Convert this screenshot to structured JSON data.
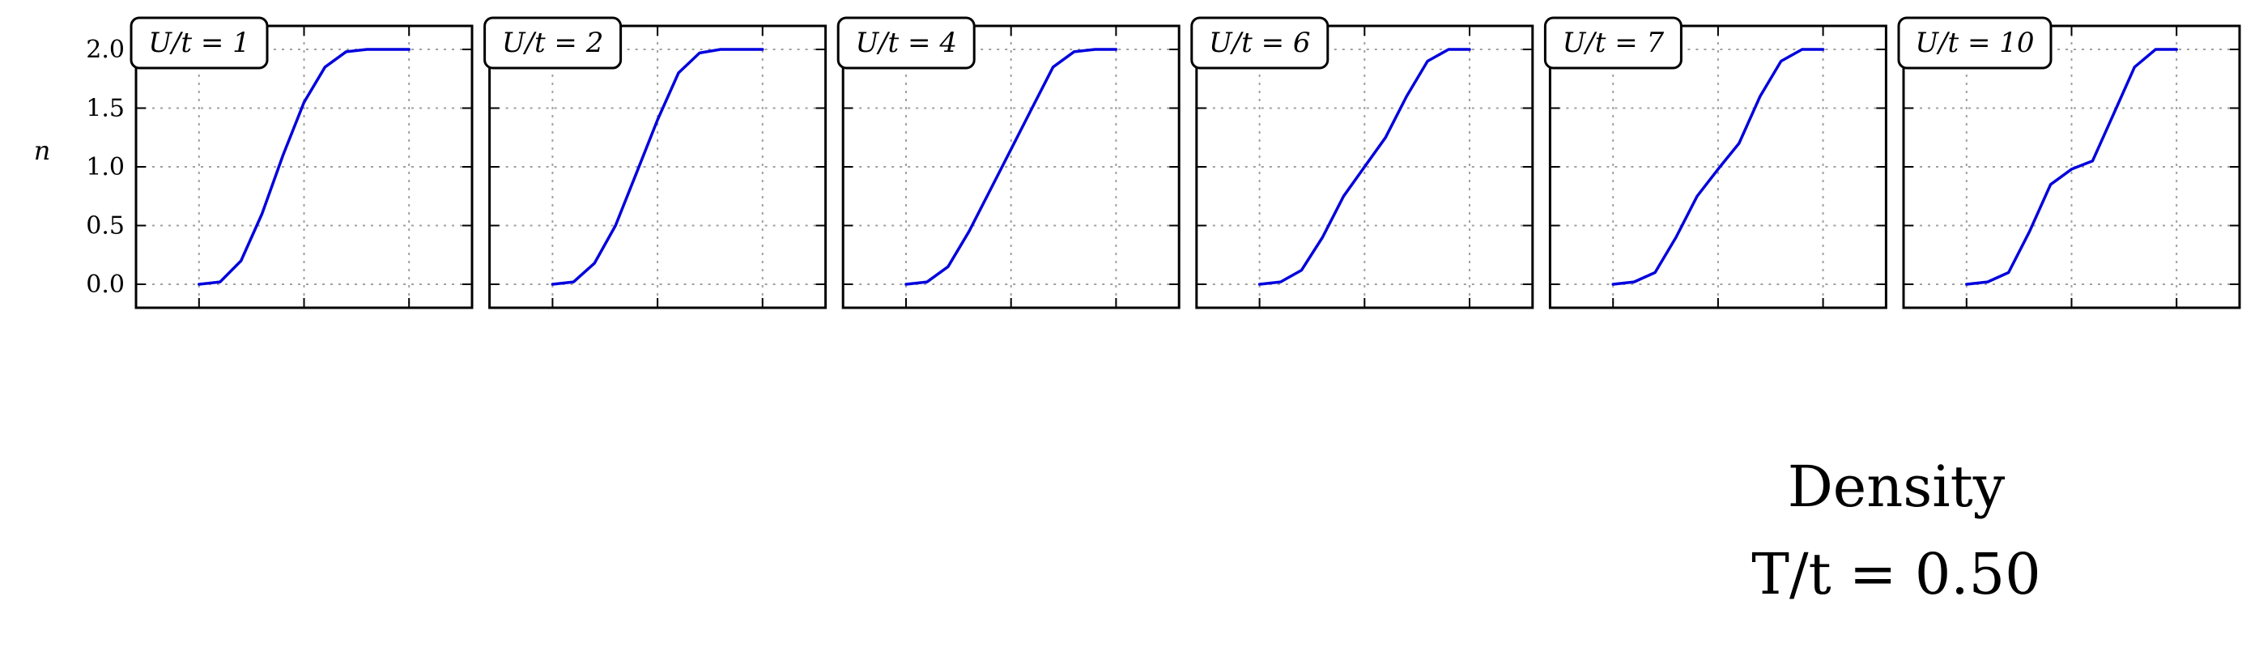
{
  "figure": {
    "title": "Density",
    "subtitle": "T/t = 0.50",
    "ylabel": "n",
    "yticks": [
      "0.0",
      "0.5",
      "1.0",
      "1.5",
      "2.0"
    ],
    "line_color": "#0000dd",
    "grid_color": "#a0a0a0"
  },
  "chart_data": [
    {
      "type": "line",
      "title": "U/t = 1",
      "ylabel": "n",
      "ylim": [
        -0.15,
        2.2
      ],
      "grid": true,
      "series": [
        {
          "x": [
            -1.0,
            -0.8,
            -0.6,
            -0.4,
            -0.2,
            0.0,
            0.2,
            0.4,
            0.6,
            0.8,
            1.0
          ],
          "values": [
            0.0,
            0.02,
            0.2,
            0.6,
            1.1,
            1.55,
            1.85,
            1.98,
            2.0,
            2.0,
            2.0
          ]
        }
      ]
    },
    {
      "type": "line",
      "title": "U/t = 2",
      "ylabel": "n",
      "ylim": [
        -0.15,
        2.2
      ],
      "grid": true,
      "series": [
        {
          "x": [
            -1.0,
            -0.8,
            -0.6,
            -0.4,
            -0.2,
            0.0,
            0.2,
            0.4,
            0.6,
            0.8,
            1.0
          ],
          "values": [
            0.0,
            0.02,
            0.18,
            0.5,
            0.95,
            1.4,
            1.8,
            1.97,
            2.0,
            2.0,
            2.0
          ]
        }
      ]
    },
    {
      "type": "line",
      "title": "U/t = 4",
      "ylabel": "n",
      "ylim": [
        -0.15,
        2.2
      ],
      "grid": true,
      "series": [
        {
          "x": [
            -1.0,
            -0.8,
            -0.6,
            -0.4,
            -0.2,
            0.0,
            0.2,
            0.4,
            0.6,
            0.8,
            1.0
          ],
          "values": [
            0.0,
            0.02,
            0.15,
            0.45,
            0.8,
            1.15,
            1.5,
            1.85,
            1.98,
            2.0,
            2.0
          ]
        }
      ]
    },
    {
      "type": "line",
      "title": "U/t = 6",
      "ylabel": "n",
      "ylim": [
        -0.15,
        2.2
      ],
      "grid": true,
      "series": [
        {
          "x": [
            -1.0,
            -0.8,
            -0.6,
            -0.4,
            -0.2,
            0.0,
            0.2,
            0.4,
            0.6,
            0.8,
            1.0
          ],
          "values": [
            0.0,
            0.02,
            0.12,
            0.4,
            0.75,
            1.0,
            1.25,
            1.6,
            1.9,
            2.0,
            2.0
          ]
        }
      ]
    },
    {
      "type": "line",
      "title": "U/t = 7",
      "ylabel": "n",
      "ylim": [
        -0.15,
        2.2
      ],
      "grid": true,
      "series": [
        {
          "x": [
            -1.0,
            -0.8,
            -0.6,
            -0.4,
            -0.2,
            0.0,
            0.2,
            0.4,
            0.6,
            0.8,
            1.0
          ],
          "values": [
            0.0,
            0.02,
            0.1,
            0.4,
            0.75,
            0.98,
            1.2,
            1.6,
            1.9,
            2.0,
            2.0
          ]
        }
      ]
    },
    {
      "type": "line",
      "title": "U/t = 10",
      "ylabel": "n",
      "ylim": [
        -0.15,
        2.2
      ],
      "grid": true,
      "series": [
        {
          "x": [
            -1.0,
            -0.8,
            -0.6,
            -0.4,
            -0.2,
            0.0,
            0.2,
            0.4,
            0.6,
            0.8,
            1.0
          ],
          "values": [
            0.0,
            0.02,
            0.1,
            0.45,
            0.85,
            0.98,
            1.05,
            1.45,
            1.85,
            2.0,
            2.0
          ]
        }
      ]
    }
  ]
}
